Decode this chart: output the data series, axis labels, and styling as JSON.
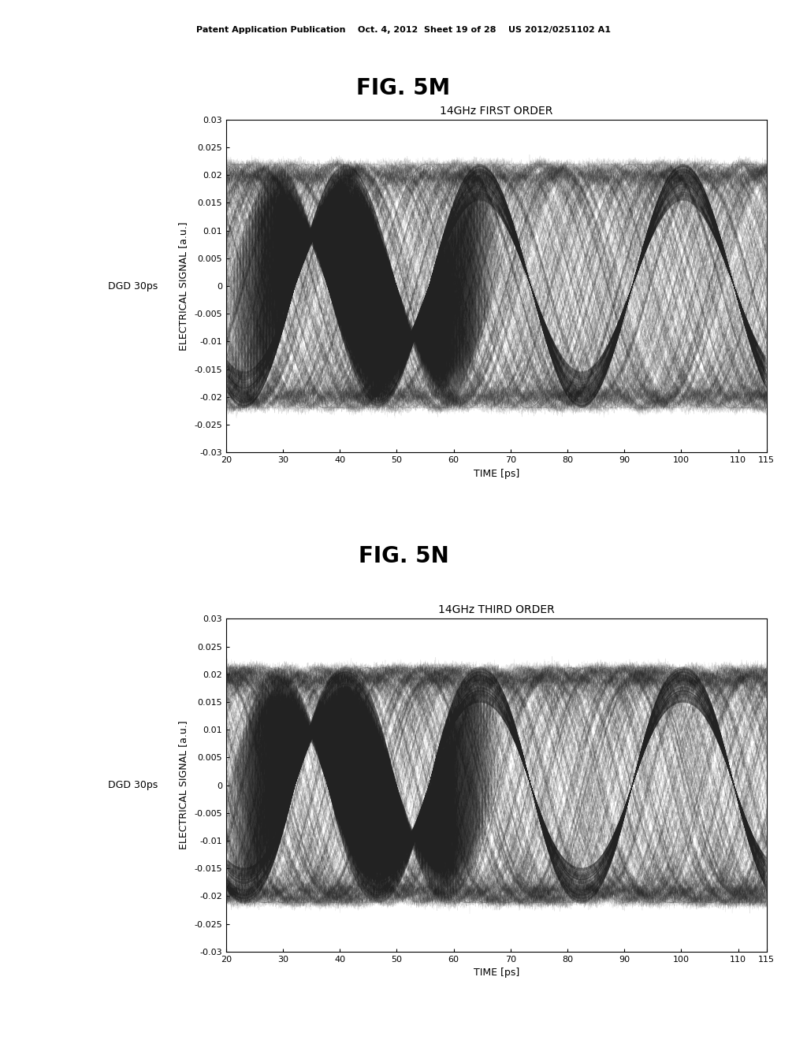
{
  "fig_title_top": "Patent Application Publication    Oct. 4, 2012  Sheet 19 of 28    US 2012/0251102 A1",
  "fig5m_label": "FIG. 5M",
  "fig5n_label": "FIG. 5N",
  "plot1_title": "14GHz FIRST ORDER",
  "plot2_title": "14GHz THIRD ORDER",
  "ylabel": "ELECTRICAL SIGNAL [a.u.]",
  "xlabel": "TIME [ps]",
  "left_label": "DGD 30ps",
  "ylim": [
    -0.03,
    0.03
  ],
  "yticks": [
    -0.03,
    -0.025,
    -0.02,
    -0.015,
    -0.01,
    -0.005,
    0,
    0.005,
    0.01,
    0.015,
    0.02,
    0.025,
    0.03
  ],
  "xlim": [
    20,
    115
  ],
  "xticks": [
    20,
    30,
    40,
    50,
    60,
    70,
    80,
    90,
    100,
    110,
    115
  ],
  "background_color": "#ffffff",
  "plot_bg_color": "#ffffff",
  "waveform_color": "#222222",
  "period": 35.7,
  "amplitude": 0.022,
  "num_traces": 60,
  "noise_std": 0.003
}
